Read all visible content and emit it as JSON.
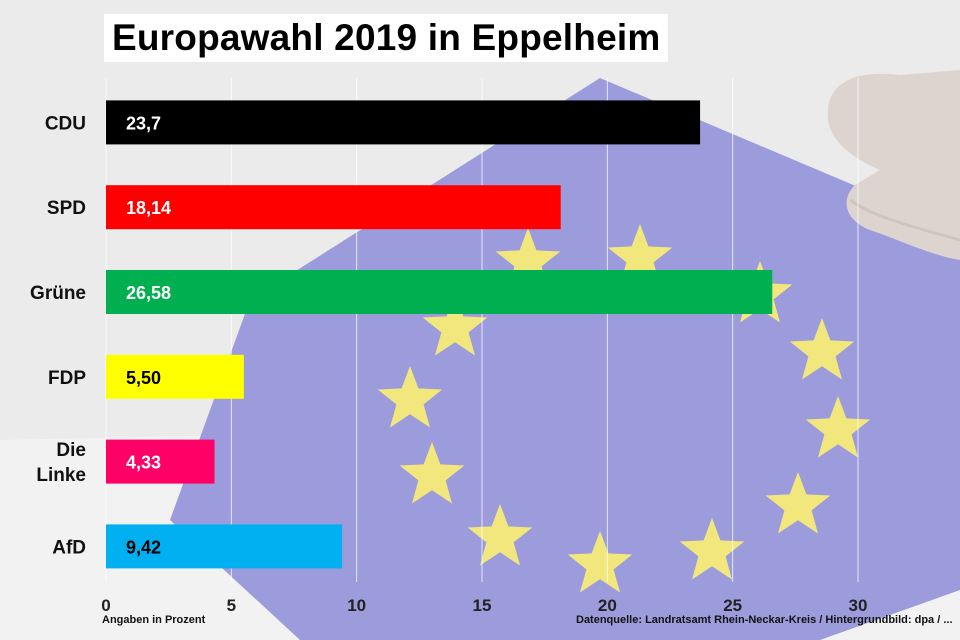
{
  "colors": {
    "background": "#e9e9e9",
    "flag_blue": "#8f8fd8",
    "star_yellow": "#efe46a"
  },
  "footer": {
    "left_note": "Angaben in Prozent",
    "source": "Datenquelle: Landratsamt Rhein-Neckar-Kreis / Hintergrundbild: dpa / ..."
  },
  "chart_data": {
    "type": "bar",
    "orientation": "horizontal",
    "title": "Europawahl 2019 in Eppelheim",
    "categories": [
      "CDU",
      "SPD",
      "Grüne",
      "FDP",
      "Die Linke",
      "AfD"
    ],
    "category_display": [
      [
        "CDU"
      ],
      [
        "SPD"
      ],
      [
        "Grüne"
      ],
      [
        "FDP"
      ],
      [
        "Die",
        "Linke"
      ],
      [
        "AfD"
      ]
    ],
    "values": [
      23.7,
      18.14,
      26.58,
      5.5,
      4.33,
      9.42
    ],
    "value_labels": [
      "23,7",
      "18,14",
      "26,58",
      "5,50",
      "4,33",
      "9,42"
    ],
    "colors": [
      "#000000",
      "#ff0000",
      "#00b050",
      "#ffff00",
      "#ff0066",
      "#00b0f0"
    ],
    "label_colors": [
      "#ffffff",
      "#ffffff",
      "#ffffff",
      "#000000",
      "#ffffff",
      "#000000"
    ],
    "xlim": [
      0,
      30
    ],
    "x_ticks": [
      0,
      5,
      10,
      15,
      20,
      25,
      30
    ],
    "xlabel": "",
    "ylabel": "",
    "grid": true,
    "legend": "none"
  }
}
